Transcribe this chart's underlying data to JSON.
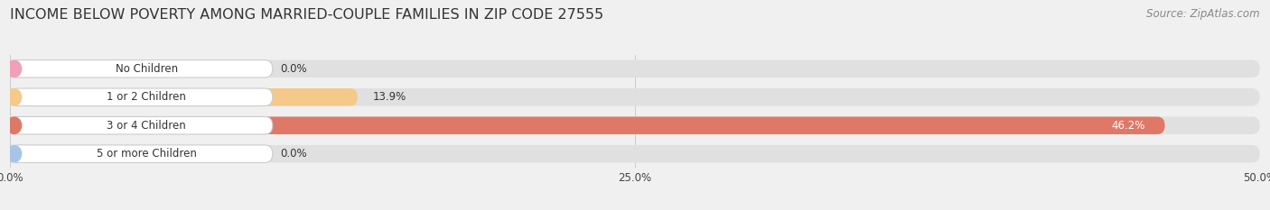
{
  "title": "INCOME BELOW POVERTY AMONG MARRIED-COUPLE FAMILIES IN ZIP CODE 27555",
  "source": "Source: ZipAtlas.com",
  "categories": [
    "No Children",
    "1 or 2 Children",
    "3 or 4 Children",
    "5 or more Children"
  ],
  "values": [
    0.0,
    13.9,
    46.2,
    0.0
  ],
  "bar_colors": [
    "#f0a0b8",
    "#f5c98a",
    "#e07868",
    "#a8c4e8"
  ],
  "xlim_max": 50.0,
  "xticks": [
    0,
    25,
    50
  ],
  "xtick_labels": [
    "0.0%",
    "25.0%",
    "50.0%"
  ],
  "bg_color": "#f0f0f0",
  "bar_bg_color": "#e0e0e0",
  "label_bg_color": "#ffffff",
  "title_fontsize": 11.5,
  "label_fontsize": 8.5,
  "value_fontsize": 8.5,
  "source_fontsize": 8.5
}
